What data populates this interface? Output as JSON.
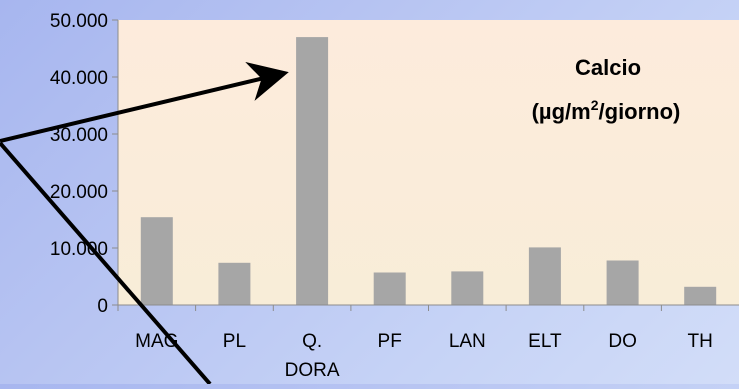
{
  "chart_data": {
    "type": "bar",
    "title_line1": "Calcio",
    "title_line2_prefix": "(µg/m",
    "title_line2_sup": "2",
    "title_line2_suffix": "/giorno)",
    "categories": [
      [
        "MAG"
      ],
      [
        "PL"
      ],
      [
        "Q.",
        "DORA"
      ],
      [
        "PF"
      ],
      [
        "LAN"
      ],
      [
        "ELT"
      ],
      [
        "DO"
      ],
      [
        "TH"
      ]
    ],
    "values": [
      15400,
      7400,
      47000,
      5700,
      5900,
      10100,
      7800,
      3200
    ],
    "ylim": [
      0,
      50000
    ],
    "yticks": [
      0,
      10000,
      20000,
      30000,
      40000,
      50000
    ],
    "ytick_labels": [
      "0",
      "10.000",
      "20.000",
      "30.000",
      "40.000",
      "50.000"
    ],
    "grid": false,
    "colors": {
      "bar": "#a6a6a6",
      "plot_top": "#fdebdc",
      "plot_bottom": "#f8edd8",
      "axis": "#8c8c8c",
      "text": "#000000",
      "annotation_line": "#000000"
    }
  }
}
